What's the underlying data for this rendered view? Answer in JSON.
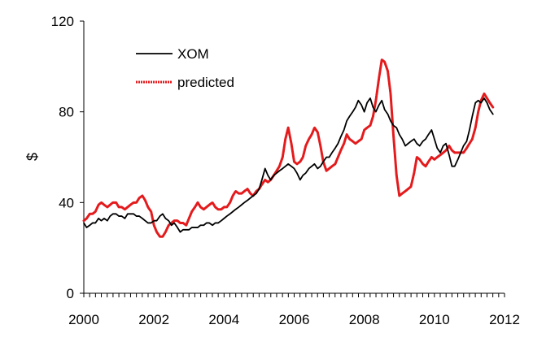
{
  "chart_data": {
    "type": "line",
    "title": "",
    "xlabel": "",
    "ylabel": "$",
    "xlim": [
      2000,
      2012
    ],
    "ylim": [
      0,
      120
    ],
    "x_ticks": [
      2000,
      2002,
      2004,
      2006,
      2008,
      2010,
      2012
    ],
    "y_ticks": [
      0,
      40,
      80,
      120
    ],
    "grid": false,
    "legend_position": "top-left",
    "series": [
      {
        "name": "XOM",
        "color": "#000000",
        "points": [
          [
            2000.0,
            31
          ],
          [
            2000.08,
            29
          ],
          [
            2000.17,
            30
          ],
          [
            2000.25,
            31
          ],
          [
            2000.33,
            31
          ],
          [
            2000.42,
            33
          ],
          [
            2000.5,
            32
          ],
          [
            2000.58,
            33
          ],
          [
            2000.67,
            32
          ],
          [
            2000.75,
            34
          ],
          [
            2000.83,
            35
          ],
          [
            2000.92,
            35
          ],
          [
            2001.0,
            34
          ],
          [
            2001.08,
            34
          ],
          [
            2001.17,
            33
          ],
          [
            2001.25,
            35
          ],
          [
            2001.33,
            35
          ],
          [
            2001.42,
            35
          ],
          [
            2001.5,
            34
          ],
          [
            2001.58,
            34
          ],
          [
            2001.67,
            33
          ],
          [
            2001.75,
            32
          ],
          [
            2001.83,
            31
          ],
          [
            2001.92,
            31
          ],
          [
            2002.0,
            32
          ],
          [
            2002.08,
            32
          ],
          [
            2002.17,
            34
          ],
          [
            2002.25,
            35
          ],
          [
            2002.33,
            33
          ],
          [
            2002.42,
            32
          ],
          [
            2002.5,
            30
          ],
          [
            2002.58,
            31
          ],
          [
            2002.67,
            29
          ],
          [
            2002.75,
            27
          ],
          [
            2002.83,
            28
          ],
          [
            2002.92,
            28
          ],
          [
            2003.0,
            28
          ],
          [
            2003.08,
            29
          ],
          [
            2003.17,
            29
          ],
          [
            2003.25,
            29
          ],
          [
            2003.33,
            30
          ],
          [
            2003.42,
            30
          ],
          [
            2003.5,
            31
          ],
          [
            2003.58,
            31
          ],
          [
            2003.67,
            30
          ],
          [
            2003.75,
            31
          ],
          [
            2003.83,
            31
          ],
          [
            2003.92,
            32
          ],
          [
            2004.0,
            33
          ],
          [
            2004.08,
            34
          ],
          [
            2004.17,
            35
          ],
          [
            2004.25,
            36
          ],
          [
            2004.33,
            37
          ],
          [
            2004.42,
            38
          ],
          [
            2004.5,
            39
          ],
          [
            2004.58,
            40
          ],
          [
            2004.67,
            41
          ],
          [
            2004.75,
            42
          ],
          [
            2004.83,
            43
          ],
          [
            2004.92,
            44
          ],
          [
            2005.0,
            46
          ],
          [
            2005.08,
            50
          ],
          [
            2005.17,
            55
          ],
          [
            2005.25,
            52
          ],
          [
            2005.33,
            50
          ],
          [
            2005.42,
            52
          ],
          [
            2005.5,
            53
          ],
          [
            2005.58,
            54
          ],
          [
            2005.67,
            55
          ],
          [
            2005.75,
            56
          ],
          [
            2005.83,
            57
          ],
          [
            2005.92,
            56
          ],
          [
            2006.0,
            55
          ],
          [
            2006.08,
            53
          ],
          [
            2006.17,
            50
          ],
          [
            2006.25,
            52
          ],
          [
            2006.33,
            53
          ],
          [
            2006.42,
            55
          ],
          [
            2006.5,
            56
          ],
          [
            2006.58,
            57
          ],
          [
            2006.67,
            55
          ],
          [
            2006.75,
            56
          ],
          [
            2006.83,
            58
          ],
          [
            2006.92,
            60
          ],
          [
            2007.0,
            60
          ],
          [
            2007.08,
            62
          ],
          [
            2007.17,
            64
          ],
          [
            2007.25,
            66
          ],
          [
            2007.33,
            69
          ],
          [
            2007.42,
            72
          ],
          [
            2007.5,
            76
          ],
          [
            2007.58,
            78
          ],
          [
            2007.67,
            80
          ],
          [
            2007.75,
            82
          ],
          [
            2007.83,
            85
          ],
          [
            2007.92,
            83
          ],
          [
            2008.0,
            80
          ],
          [
            2008.08,
            84
          ],
          [
            2008.17,
            86
          ],
          [
            2008.25,
            82
          ],
          [
            2008.33,
            80
          ],
          [
            2008.42,
            83
          ],
          [
            2008.5,
            85
          ],
          [
            2008.58,
            81
          ],
          [
            2008.67,
            79
          ],
          [
            2008.75,
            76
          ],
          [
            2008.83,
            74
          ],
          [
            2008.92,
            73
          ],
          [
            2009.0,
            70
          ],
          [
            2009.08,
            68
          ],
          [
            2009.17,
            65
          ],
          [
            2009.25,
            66
          ],
          [
            2009.33,
            67
          ],
          [
            2009.42,
            68
          ],
          [
            2009.5,
            66
          ],
          [
            2009.58,
            65
          ],
          [
            2009.67,
            67
          ],
          [
            2009.75,
            68
          ],
          [
            2009.83,
            70
          ],
          [
            2009.92,
            72
          ],
          [
            2010.0,
            68
          ],
          [
            2010.08,
            64
          ],
          [
            2010.17,
            62
          ],
          [
            2010.25,
            65
          ],
          [
            2010.33,
            66
          ],
          [
            2010.42,
            61
          ],
          [
            2010.5,
            56
          ],
          [
            2010.58,
            56
          ],
          [
            2010.67,
            59
          ],
          [
            2010.75,
            62
          ],
          [
            2010.83,
            65
          ],
          [
            2010.92,
            67
          ],
          [
            2011.0,
            72
          ],
          [
            2011.08,
            78
          ],
          [
            2011.17,
            84
          ],
          [
            2011.25,
            85
          ],
          [
            2011.33,
            84
          ],
          [
            2011.42,
            86
          ],
          [
            2011.5,
            84
          ],
          [
            2011.58,
            81
          ],
          [
            2011.67,
            79
          ]
        ]
      },
      {
        "name": "predicted",
        "color": "#e41a1c",
        "points": [
          [
            2000.0,
            32
          ],
          [
            2000.08,
            33
          ],
          [
            2000.17,
            35
          ],
          [
            2000.25,
            35
          ],
          [
            2000.33,
            36
          ],
          [
            2000.42,
            39
          ],
          [
            2000.5,
            40
          ],
          [
            2000.58,
            39
          ],
          [
            2000.67,
            38
          ],
          [
            2000.75,
            39
          ],
          [
            2000.83,
            40
          ],
          [
            2000.92,
            40
          ],
          [
            2001.0,
            38
          ],
          [
            2001.08,
            38
          ],
          [
            2001.17,
            37
          ],
          [
            2001.25,
            38
          ],
          [
            2001.33,
            39
          ],
          [
            2001.42,
            40
          ],
          [
            2001.5,
            40
          ],
          [
            2001.58,
            42
          ],
          [
            2001.67,
            43
          ],
          [
            2001.75,
            41
          ],
          [
            2001.83,
            38
          ],
          [
            2001.92,
            36
          ],
          [
            2002.0,
            30
          ],
          [
            2002.08,
            27
          ],
          [
            2002.17,
            25
          ],
          [
            2002.25,
            25
          ],
          [
            2002.33,
            27
          ],
          [
            2002.42,
            30
          ],
          [
            2002.5,
            31
          ],
          [
            2002.58,
            32
          ],
          [
            2002.67,
            32
          ],
          [
            2002.75,
            31
          ],
          [
            2002.83,
            31
          ],
          [
            2002.92,
            30
          ],
          [
            2003.0,
            33
          ],
          [
            2003.08,
            36
          ],
          [
            2003.17,
            38
          ],
          [
            2003.25,
            40
          ],
          [
            2003.33,
            38
          ],
          [
            2003.42,
            37
          ],
          [
            2003.5,
            38
          ],
          [
            2003.58,
            39
          ],
          [
            2003.67,
            40
          ],
          [
            2003.75,
            38
          ],
          [
            2003.83,
            37
          ],
          [
            2003.92,
            37
          ],
          [
            2004.0,
            38
          ],
          [
            2004.08,
            38
          ],
          [
            2004.17,
            40
          ],
          [
            2004.25,
            43
          ],
          [
            2004.33,
            45
          ],
          [
            2004.42,
            44
          ],
          [
            2004.5,
            44
          ],
          [
            2004.58,
            45
          ],
          [
            2004.67,
            46
          ],
          [
            2004.75,
            44
          ],
          [
            2004.83,
            43
          ],
          [
            2004.92,
            45
          ],
          [
            2005.0,
            46
          ],
          [
            2005.08,
            48
          ],
          [
            2005.17,
            50
          ],
          [
            2005.25,
            49
          ],
          [
            2005.33,
            50
          ],
          [
            2005.42,
            52
          ],
          [
            2005.5,
            54
          ],
          [
            2005.58,
            56
          ],
          [
            2005.67,
            60
          ],
          [
            2005.75,
            68
          ],
          [
            2005.83,
            73
          ],
          [
            2005.92,
            66
          ],
          [
            2006.0,
            58
          ],
          [
            2006.08,
            57
          ],
          [
            2006.17,
            58
          ],
          [
            2006.25,
            60
          ],
          [
            2006.33,
            65
          ],
          [
            2006.42,
            68
          ],
          [
            2006.5,
            70
          ],
          [
            2006.58,
            73
          ],
          [
            2006.67,
            71
          ],
          [
            2006.75,
            65
          ],
          [
            2006.83,
            58
          ],
          [
            2006.92,
            54
          ],
          [
            2007.0,
            55
          ],
          [
            2007.08,
            56
          ],
          [
            2007.17,
            57
          ],
          [
            2007.25,
            60
          ],
          [
            2007.33,
            63
          ],
          [
            2007.42,
            66
          ],
          [
            2007.5,
            70
          ],
          [
            2007.58,
            68
          ],
          [
            2007.67,
            67
          ],
          [
            2007.75,
            66
          ],
          [
            2007.83,
            67
          ],
          [
            2007.92,
            68
          ],
          [
            2008.0,
            72
          ],
          [
            2008.08,
            73
          ],
          [
            2008.17,
            74
          ],
          [
            2008.25,
            78
          ],
          [
            2008.33,
            85
          ],
          [
            2008.42,
            95
          ],
          [
            2008.5,
            103
          ],
          [
            2008.58,
            102
          ],
          [
            2008.67,
            98
          ],
          [
            2008.75,
            88
          ],
          [
            2008.83,
            70
          ],
          [
            2008.92,
            52
          ],
          [
            2009.0,
            43
          ],
          [
            2009.08,
            44
          ],
          [
            2009.17,
            45
          ],
          [
            2009.25,
            46
          ],
          [
            2009.33,
            47
          ],
          [
            2009.42,
            53
          ],
          [
            2009.5,
            60
          ],
          [
            2009.58,
            59
          ],
          [
            2009.67,
            57
          ],
          [
            2009.75,
            56
          ],
          [
            2009.83,
            58
          ],
          [
            2009.92,
            60
          ],
          [
            2010.0,
            59
          ],
          [
            2010.08,
            60
          ],
          [
            2010.17,
            61
          ],
          [
            2010.25,
            62
          ],
          [
            2010.33,
            63
          ],
          [
            2010.42,
            65
          ],
          [
            2010.5,
            63
          ],
          [
            2010.58,
            62
          ],
          [
            2010.67,
            62
          ],
          [
            2010.75,
            62
          ],
          [
            2010.83,
            62
          ],
          [
            2010.92,
            64
          ],
          [
            2011.0,
            66
          ],
          [
            2011.08,
            68
          ],
          [
            2011.17,
            73
          ],
          [
            2011.25,
            80
          ],
          [
            2011.33,
            85
          ],
          [
            2011.42,
            88
          ],
          [
            2011.5,
            86
          ],
          [
            2011.58,
            84
          ],
          [
            2011.67,
            82
          ]
        ]
      }
    ]
  }
}
